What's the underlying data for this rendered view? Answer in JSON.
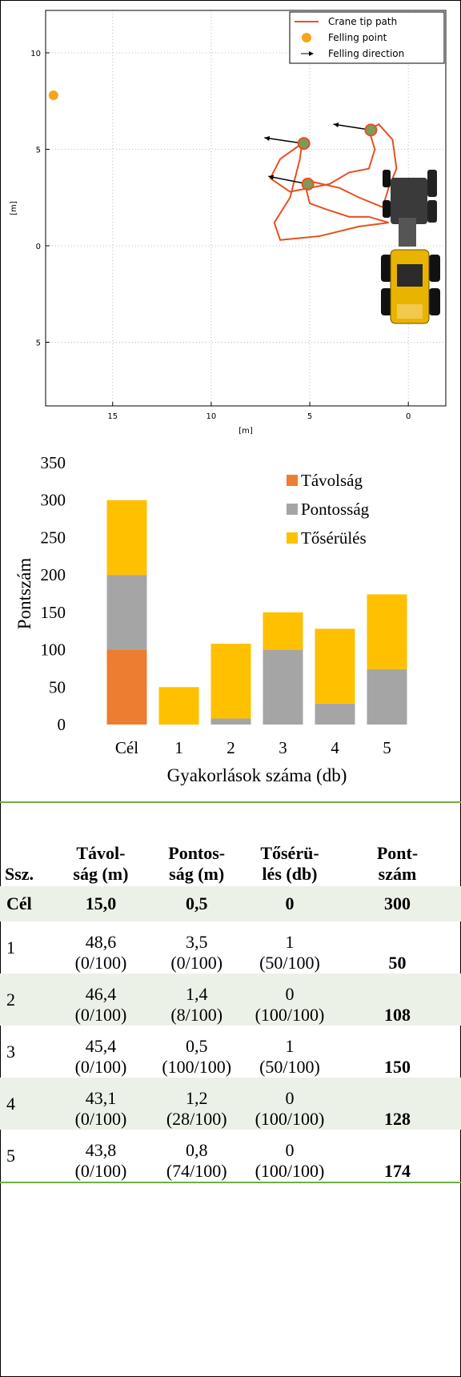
{
  "chart_data": [
    {
      "type": "trajectory",
      "xlabel": "[m]",
      "ylabel": "[m]",
      "xlim": [
        18.4,
        -1.9
      ],
      "ylim": [
        -8.3,
        12.2
      ],
      "xticks": [
        15,
        10,
        5,
        0
      ],
      "yticks": [
        10,
        5,
        0,
        {
          "value": -5,
          "label": "5"
        }
      ],
      "grid": true,
      "legend": "upper right",
      "series": [
        {
          "name": "Crane tip path",
          "color": "#e8501e",
          "x": [
            1.3,
            2.5,
            3.5,
            4.8,
            5.2,
            5.0,
            4.2,
            3.0,
            2.0,
            1.0,
            2.5,
            4.5,
            6.5,
            6.8,
            6.0,
            5.5,
            5.4,
            6.5,
            7.0,
            6.0,
            4.0,
            3.0,
            2.0,
            1.7,
            2.0,
            1.5,
            0.8,
            0.6,
            1.0,
            1.3
          ],
          "y": [
            2.0,
            2.5,
            3.0,
            3.3,
            3.0,
            2.2,
            1.9,
            1.5,
            1.5,
            1.2,
            1.0,
            0.5,
            0.3,
            1.2,
            2.5,
            4.5,
            5.3,
            4.5,
            3.5,
            2.8,
            3.2,
            3.8,
            4.0,
            5.0,
            6.0,
            6.3,
            5.5,
            4.0,
            3.0,
            2.0
          ]
        },
        {
          "name": "Felling point",
          "color": "#f7a418",
          "x": [
            18.0
          ],
          "y": [
            7.8
          ]
        },
        {
          "name": "Felling direction",
          "color": "#000000",
          "marker_color": "#7e9a5a",
          "x": [
            5.3,
            5.1,
            1.9
          ],
          "y": [
            5.3,
            3.2,
            6.0
          ],
          "dx": [
            2.0,
            2.0,
            1.9
          ],
          "dy": [
            0.3,
            0.4,
            0.3
          ]
        }
      ]
    },
    {
      "type": "bar",
      "stacked": true,
      "ylabel": "Pontszám",
      "xlabel": "Gyakorlások száma (db)",
      "categories": [
        "Cél",
        "1",
        "2",
        "3",
        "4",
        "5"
      ],
      "ylim": [
        0,
        350
      ],
      "yticks": [
        0,
        50,
        100,
        150,
        200,
        250,
        300,
        350
      ],
      "legend": "upper right",
      "series": [
        {
          "name": "Távolság",
          "color": "#ed7d31",
          "values": [
            100,
            0,
            0,
            0,
            0,
            0
          ]
        },
        {
          "name": "Pontosság",
          "color": "#a5a5a5",
          "values": [
            100,
            0,
            8,
            100,
            28,
            74
          ]
        },
        {
          "name": "Tősérülés",
          "color": "#ffc000",
          "values": [
            100,
            50,
            100,
            50,
            100,
            100
          ]
        }
      ]
    }
  ],
  "table": {
    "header": [
      "Ssz.",
      "Távol-\nság (m)",
      "Pontos-\nság (m)",
      "Tősérü-\nlés (db)",
      "Pont-\nszám"
    ],
    "rows": [
      [
        "Cél",
        "15,0",
        "0,5",
        "0",
        "300"
      ],
      [
        "1",
        "48,6\n(0/100)",
        "3,5\n(0/100)",
        "1\n(50/100)",
        "50"
      ],
      [
        "2",
        "46,4\n(0/100)",
        "1,4\n(8/100)",
        "0\n(100/100)",
        "108"
      ],
      [
        "3",
        "45,4\n(0/100)",
        "0,5\n(100/100)",
        "1\n(50/100)",
        "150"
      ],
      [
        "4",
        "43,1\n(0/100)",
        "1,2\n(28/100)",
        "0\n(100/100)",
        "128"
      ],
      [
        "5",
        "43,8\n(0/100)",
        "0,8\n(74/100)",
        "0\n(100/100)",
        "174"
      ]
    ]
  }
}
